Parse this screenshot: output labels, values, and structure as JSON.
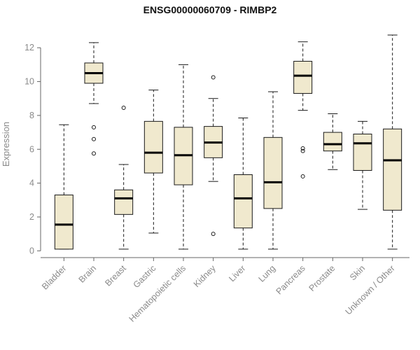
{
  "chart_data": {
    "type": "boxplot",
    "title": "ENSG00000060709 - RIMBP2",
    "xlabel": "",
    "ylabel": "Expression",
    "ylim": [
      0,
      12.8
    ],
    "yticks": [
      0,
      2,
      4,
      6,
      8,
      10,
      12
    ],
    "grid": false,
    "legend": "none",
    "colors": {
      "box_fill": "#F0E9CE",
      "box_stroke": "#1a1a1a",
      "median": "#000000",
      "axis": "#666666",
      "tick_label": "#8a8a8a",
      "title": "#111111",
      "background": "#ffffff"
    },
    "categories": [
      "Bladder",
      "Brain",
      "Breast",
      "Gastric",
      "Hematopoietic cells",
      "Kidney",
      "Liver",
      "Lung",
      "Pancreas",
      "Prostate",
      "Skin",
      "Unknown / Other"
    ],
    "series": [
      {
        "name": "Bladder",
        "whisker_low": 0.1,
        "q1": 0.1,
        "median": 1.55,
        "q3": 3.3,
        "whisker_high": 7.45,
        "outliers": []
      },
      {
        "name": "Brain",
        "whisker_low": 8.7,
        "q1": 9.9,
        "median": 10.5,
        "q3": 11.1,
        "whisker_high": 12.3,
        "outliers": [
          5.75,
          6.6,
          7.3
        ]
      },
      {
        "name": "Breast",
        "whisker_low": 0.1,
        "q1": 2.15,
        "median": 3.1,
        "q3": 3.6,
        "whisker_high": 5.1,
        "outliers": [
          8.45
        ]
      },
      {
        "name": "Gastric",
        "whisker_low": 1.05,
        "q1": 4.6,
        "median": 5.8,
        "q3": 7.65,
        "whisker_high": 9.5,
        "outliers": []
      },
      {
        "name": "Hematopoietic cells",
        "whisker_low": 0.1,
        "q1": 3.9,
        "median": 5.65,
        "q3": 7.3,
        "whisker_high": 11.0,
        "outliers": []
      },
      {
        "name": "Kidney",
        "whisker_low": 4.1,
        "q1": 5.5,
        "median": 6.4,
        "q3": 7.35,
        "whisker_high": 9.0,
        "outliers": [
          1.0,
          10.25
        ]
      },
      {
        "name": "Liver",
        "whisker_low": 0.1,
        "q1": 1.35,
        "median": 3.1,
        "q3": 4.5,
        "whisker_high": 7.85,
        "outliers": []
      },
      {
        "name": "Lung",
        "whisker_low": 0.1,
        "q1": 2.5,
        "median": 4.05,
        "q3": 6.7,
        "whisker_high": 9.4,
        "outliers": []
      },
      {
        "name": "Pancreas",
        "whisker_low": 8.3,
        "q1": 9.3,
        "median": 10.35,
        "q3": 11.2,
        "whisker_high": 12.35,
        "outliers": [
          4.4,
          5.9,
          6.05
        ]
      },
      {
        "name": "Prostate",
        "whisker_low": 4.8,
        "q1": 5.9,
        "median": 6.3,
        "q3": 7.0,
        "whisker_high": 8.1,
        "outliers": []
      },
      {
        "name": "Skin",
        "whisker_low": 2.45,
        "q1": 4.75,
        "median": 6.35,
        "q3": 6.9,
        "whisker_high": 7.65,
        "outliers": []
      },
      {
        "name": "Unknown / Other",
        "whisker_low": 0.1,
        "q1": 2.4,
        "median": 5.35,
        "q3": 7.2,
        "whisker_high": 12.75,
        "outliers": []
      }
    ]
  }
}
